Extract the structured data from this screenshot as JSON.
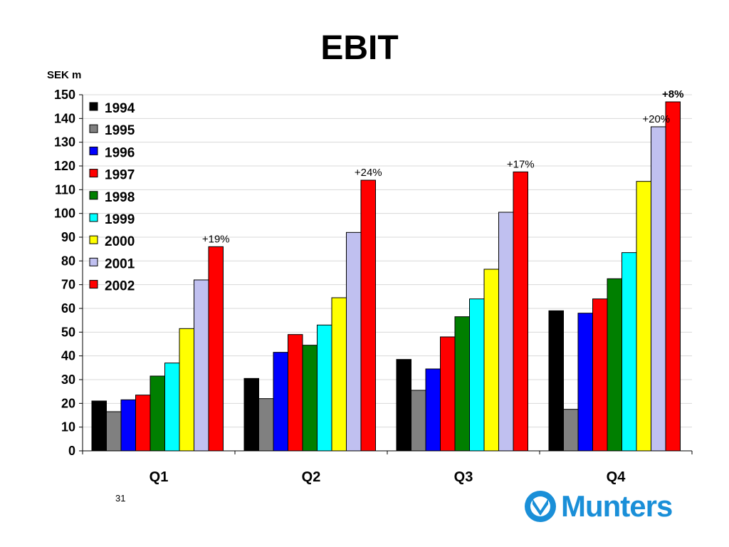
{
  "slide": {
    "title": "EBIT",
    "page_number": "31",
    "logo_text": "Munters"
  },
  "chart_data": {
    "type": "bar",
    "title": "EBIT",
    "ylabel": "SEK m",
    "xlabel": "",
    "ylim": [
      0,
      150
    ],
    "yticks": [
      0,
      10,
      20,
      30,
      40,
      50,
      60,
      70,
      80,
      90,
      100,
      110,
      120,
      130,
      140,
      150
    ],
    "grid": true,
    "legend_position": "top-left",
    "categories": [
      "Q1",
      "Q2",
      "Q3",
      "Q4"
    ],
    "series": [
      {
        "name": "1994",
        "color": "#000000",
        "values": [
          21,
          30.5,
          38.5,
          59
        ]
      },
      {
        "name": "1995",
        "color": "#808080",
        "values": [
          16.5,
          22,
          25.5,
          17.5
        ]
      },
      {
        "name": "1996",
        "color": "#0000ff",
        "values": [
          21.5,
          41.5,
          34.5,
          58
        ]
      },
      {
        "name": "1997",
        "color": "#ff0000",
        "values": [
          23.5,
          49,
          48,
          64
        ]
      },
      {
        "name": "1998",
        "color": "#007f00",
        "values": [
          31.5,
          44.5,
          56.5,
          72.5
        ]
      },
      {
        "name": "1999",
        "color": "#00ffff",
        "values": [
          37,
          53,
          64,
          83.5
        ]
      },
      {
        "name": "2000",
        "color": "#ffff00",
        "values": [
          51.5,
          64.5,
          76.5,
          113.5
        ]
      },
      {
        "name": "2001",
        "color": "#c0c0f0",
        "values": [
          72,
          92,
          100.5,
          136.5
        ]
      },
      {
        "name": "2002",
        "color": "#ff0000",
        "values": [
          86,
          114,
          117.5,
          147
        ]
      }
    ],
    "annotations": [
      {
        "category": "Q1",
        "text": "+19%",
        "bold": false
      },
      {
        "category": "Q2",
        "text": "+24%",
        "bold": false
      },
      {
        "category": "Q3",
        "text": "+17%",
        "bold": false
      },
      {
        "category": "Q4",
        "text": "+20%",
        "bold": false,
        "series": "2001"
      },
      {
        "category": "Q4",
        "text": "+8%",
        "bold": true
      }
    ]
  }
}
